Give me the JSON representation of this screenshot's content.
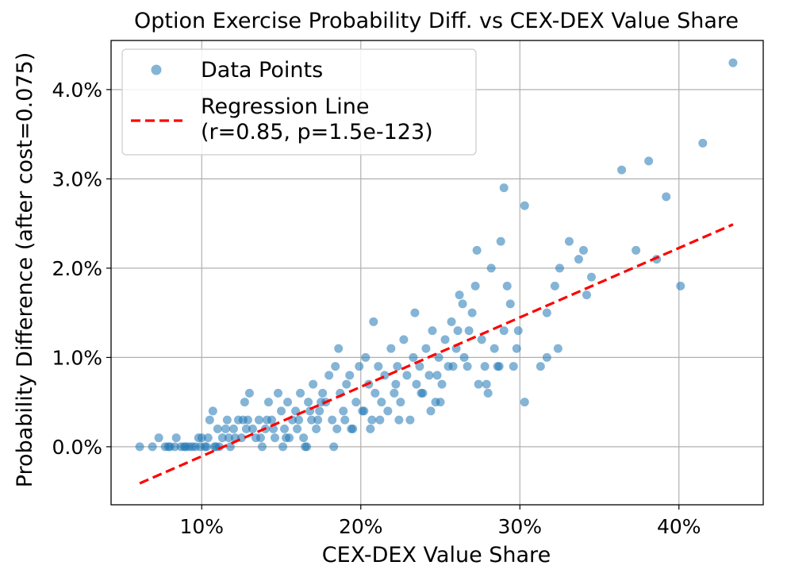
{
  "chart_data": {
    "type": "scatter",
    "title": "Option Exercise Probability Diff. vs CEX-DEX Value Share",
    "xlabel": "CEX-DEX Value Share",
    "ylabel": "Probability Difference (after cost=0.075)",
    "xlim": [
      4.3,
      45.3
    ],
    "ylim": [
      -0.65,
      4.55
    ],
    "x_ticks": [
      10,
      20,
      30,
      40
    ],
    "x_tick_labels": [
      "10%",
      "20%",
      "30%",
      "40%"
    ],
    "y_ticks": [
      0,
      1,
      2,
      3,
      4
    ],
    "y_tick_labels": [
      "0.0%",
      "1.0%",
      "2.0%",
      "3.0%",
      "4.0%"
    ],
    "grid": true,
    "legend_position": "top-left",
    "series": [
      {
        "name": "Data Points",
        "kind": "scatter",
        "color": "#1f77b4",
        "opacity": 0.55,
        "points": [
          [
            6.1,
            0.0
          ],
          [
            6.9,
            0.0
          ],
          [
            7.3,
            0.1
          ],
          [
            7.7,
            0.0
          ],
          [
            8.0,
            0.0
          ],
          [
            8.3,
            0.0
          ],
          [
            8.4,
            0.1
          ],
          [
            8.7,
            0.0
          ],
          [
            9.0,
            0.0
          ],
          [
            9.2,
            0.0
          ],
          [
            9.4,
            0.0
          ],
          [
            9.6,
            0.0
          ],
          [
            9.8,
            0.1
          ],
          [
            10.0,
            0.1
          ],
          [
            10.2,
            0.0
          ],
          [
            10.4,
            0.1
          ],
          [
            10.5,
            0.3
          ],
          [
            10.7,
            0.4
          ],
          [
            10.9,
            0.0
          ],
          [
            11.1,
            0.0
          ],
          [
            11.3,
            0.1
          ],
          [
            11.5,
            0.2
          ],
          [
            11.6,
            0.3
          ],
          [
            11.8,
            0.0
          ],
          [
            12.0,
            0.2
          ],
          [
            12.1,
            0.1
          ],
          [
            12.3,
            0.3
          ],
          [
            12.5,
            0.1
          ],
          [
            12.7,
            0.5
          ],
          [
            12.9,
            0.3
          ],
          [
            13.0,
            0.6
          ],
          [
            13.2,
            0.2
          ],
          [
            13.4,
            0.1
          ],
          [
            13.6,
            0.3
          ],
          [
            13.8,
            0.0
          ],
          [
            14.0,
            0.2
          ],
          [
            14.2,
            0.5
          ],
          [
            14.4,
            0.3
          ],
          [
            14.6,
            0.1
          ],
          [
            14.8,
            0.6
          ],
          [
            15.0,
            0.4
          ],
          [
            15.2,
            0.2
          ],
          [
            15.4,
            0.5
          ],
          [
            15.5,
            0.1
          ],
          [
            15.7,
            0.3
          ],
          [
            15.9,
            0.4
          ],
          [
            16.0,
            0.2
          ],
          [
            16.2,
            0.6
          ],
          [
            16.4,
            0.1
          ],
          [
            16.5,
            0.0
          ],
          [
            16.7,
            0.5
          ],
          [
            16.9,
            0.3
          ],
          [
            17.0,
            0.7
          ],
          [
            17.2,
            0.2
          ],
          [
            17.4,
            0.4
          ],
          [
            17.6,
            0.6
          ],
          [
            17.8,
            0.5
          ],
          [
            18.0,
            0.8
          ],
          [
            18.2,
            0.3
          ],
          [
            18.4,
            0.9
          ],
          [
            18.5,
            0.2
          ],
          [
            18.7,
            0.6
          ],
          [
            18.9,
            0.4
          ],
          [
            19.1,
            0.7
          ],
          [
            19.3,
            0.8
          ],
          [
            19.5,
            0.2
          ],
          [
            19.7,
            0.5
          ],
          [
            19.9,
            0.9
          ],
          [
            20.1,
            0.4
          ],
          [
            20.3,
            1.0
          ],
          [
            20.5,
            0.7
          ],
          [
            20.7,
            0.3
          ],
          [
            20.9,
            0.6
          ],
          [
            21.1,
            0.9
          ],
          [
            21.3,
            0.5
          ],
          [
            21.5,
            0.8
          ],
          [
            21.7,
            0.4
          ],
          [
            21.9,
            1.1
          ],
          [
            22.1,
            0.6
          ],
          [
            22.3,
            0.9
          ],
          [
            22.5,
            0.5
          ],
          [
            22.7,
            1.2
          ],
          [
            22.9,
            0.8
          ],
          [
            23.1,
            0.3
          ],
          [
            23.3,
            1.0
          ],
          [
            23.5,
            0.7
          ],
          [
            23.7,
            0.9
          ],
          [
            23.9,
            0.6
          ],
          [
            24.1,
            1.1
          ],
          [
            24.3,
            0.8
          ],
          [
            24.5,
            1.3
          ],
          [
            24.7,
            0.5
          ],
          [
            24.9,
            1.0
          ],
          [
            25.1,
            0.7
          ],
          [
            25.3,
            1.2
          ],
          [
            25.5,
            0.9
          ],
          [
            25.7,
            1.4
          ],
          [
            26.0,
            1.1
          ],
          [
            26.2,
            1.7
          ],
          [
            26.5,
            1.0
          ],
          [
            26.8,
            1.3
          ],
          [
            27.0,
            1.5
          ],
          [
            27.2,
            1.8
          ],
          [
            27.4,
            0.7
          ],
          [
            27.6,
            1.2
          ],
          [
            27.8,
            0.9
          ],
          [
            28.0,
            0.6
          ],
          [
            28.2,
            2.0
          ],
          [
            28.4,
            1.1
          ],
          [
            28.6,
            0.9
          ],
          [
            28.8,
            2.3
          ],
          [
            29.0,
            1.3
          ],
          [
            29.2,
            1.8
          ],
          [
            29.4,
            1.6
          ],
          [
            29.6,
            0.9
          ],
          [
            29.8,
            1.1
          ],
          [
            30.3,
            2.7
          ],
          [
            29.0,
            2.9
          ],
          [
            31.3,
            0.9
          ],
          [
            31.7,
            1.5
          ],
          [
            32.2,
            1.8
          ],
          [
            32.5,
            2.0
          ],
          [
            32.4,
            1.1
          ],
          [
            33.1,
            2.3
          ],
          [
            33.7,
            2.1
          ],
          [
            34.0,
            2.2
          ],
          [
            34.2,
            1.7
          ],
          [
            34.5,
            1.9
          ],
          [
            31.7,
            1.0
          ],
          [
            36.4,
            3.1
          ],
          [
            37.3,
            2.2
          ],
          [
            38.1,
            3.2
          ],
          [
            38.6,
            2.1
          ],
          [
            39.2,
            2.8
          ],
          [
            40.1,
            1.8
          ],
          [
            41.5,
            3.4
          ],
          [
            43.4,
            4.3
          ],
          [
            10.3,
            0.0
          ],
          [
            11.0,
            0.2
          ],
          [
            12.8,
            0.2
          ],
          [
            14.1,
            0.3
          ],
          [
            16.6,
            0.0
          ],
          [
            17.3,
            0.3
          ],
          [
            19.0,
            0.3
          ],
          [
            20.6,
            0.2
          ],
          [
            22.4,
            0.3
          ],
          [
            23.8,
            0.6
          ],
          [
            24.4,
            0.4
          ],
          [
            25.0,
            0.5
          ],
          [
            26.7,
            0.9
          ],
          [
            27.3,
            2.2
          ],
          [
            26.4,
            1.6
          ],
          [
            30.3,
            0.5
          ],
          [
            29.9,
            1.3
          ],
          [
            28.7,
            0.9
          ],
          [
            27.9,
            0.7
          ],
          [
            26.1,
            1.3
          ],
          [
            25.8,
            0.9
          ],
          [
            24.8,
            0.8
          ],
          [
            23.4,
            1.5
          ],
          [
            22.2,
            0.7
          ],
          [
            21.2,
            0.3
          ],
          [
            20.2,
            0.4
          ],
          [
            19.4,
            0.2
          ],
          [
            18.3,
            0.0
          ],
          [
            17.5,
            0.5
          ],
          [
            16.8,
            0.4
          ],
          [
            16.1,
            0.3
          ],
          [
            15.3,
            0.1
          ],
          [
            14.5,
            0.2
          ],
          [
            13.7,
            0.1
          ],
          [
            12.6,
            0.3
          ],
          [
            11.7,
            0.1
          ],
          [
            10.8,
            0.0
          ],
          [
            9.9,
            0.0
          ],
          [
            8.9,
            0.0
          ],
          [
            7.9,
            0.0
          ],
          [
            15.1,
            0.0
          ],
          [
            18.6,
            1.1
          ],
          [
            20.8,
            1.4
          ]
        ]
      },
      {
        "name": "Regression Line\n(r=0.85, p=1.5e-123)",
        "kind": "line",
        "color": "#ff0000",
        "style": "dashed",
        "points": [
          [
            6.1,
            -0.41
          ],
          [
            43.4,
            2.49
          ]
        ]
      }
    ]
  }
}
